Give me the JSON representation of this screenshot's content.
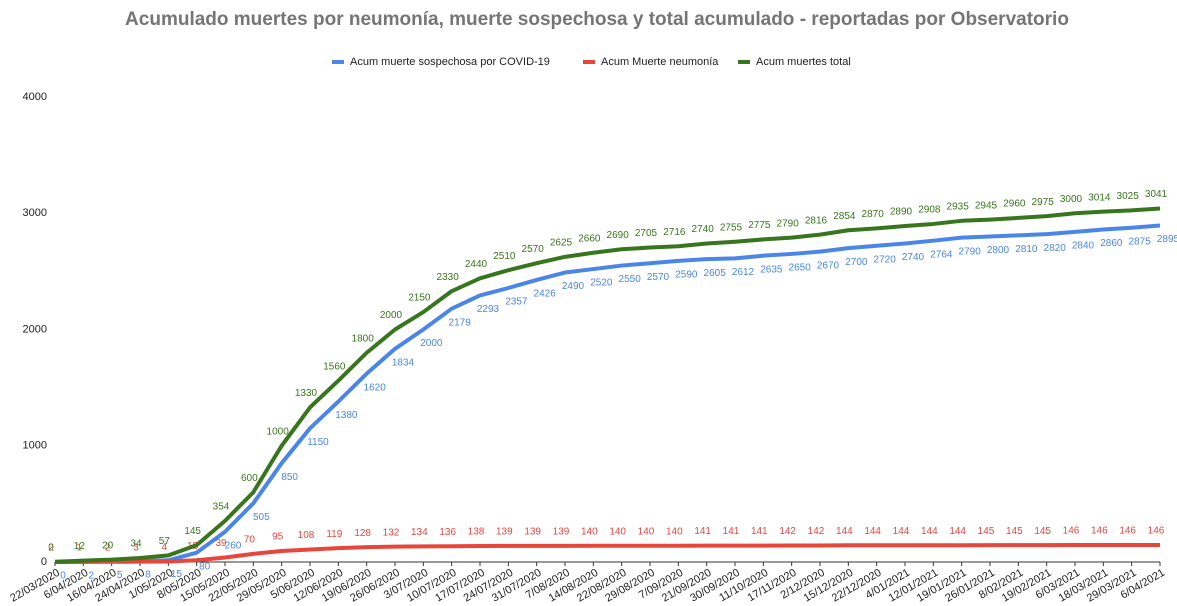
{
  "chart_data": {
    "type": "line",
    "title": "Acumulado muertes por neumonía, muerte sospechosa y total acumulado - reportadas por Observatorio",
    "categories": [
      "22/03/2020",
      "6/04/2020",
      "16/04/2020",
      "24/04/2020",
      "1/05/2020",
      "8/05/2020",
      "15/05/2020",
      "22/05/2020",
      "29/05/2020",
      "5/06/2020",
      "12/06/2020",
      "19/06/2020",
      "26/06/2020",
      "3/07/2020",
      "10/07/2020",
      "17/07/2020",
      "24/07/2020",
      "31/07/2020",
      "7/08/2020",
      "14/08/2020",
      "22/08/2020",
      "29/08/2020",
      "7/09/2020",
      "21/09/2020",
      "30/09/2020",
      "11/10/2020",
      "17/11/2020",
      "2/12/2020",
      "15/12/2020",
      "22/12/2020",
      "4/01/2021",
      "12/01/2021",
      "19/01/2021",
      "26/01/2021",
      "8/02/2021",
      "19/02/2021",
      "6/03/2021",
      "18/03/2021",
      "29/03/2021",
      "6/04/2021"
    ],
    "series": [
      {
        "name": "Acum muerte sospechosa por COVID-19",
        "color": "#4a86e8",
        "values": [
          0,
          2,
          5,
          8,
          15,
          80,
          260,
          505,
          850,
          1150,
          1380,
          1620,
          1834,
          2000,
          2179,
          2293,
          2357,
          2426,
          2490,
          2520,
          2550,
          2570,
          2590,
          2605,
          2612,
          2635,
          2650,
          2670,
          2700,
          2720,
          2740,
          2764,
          2790,
          2800,
          2810,
          2820,
          2840,
          2860,
          2875,
          2895
        ]
      },
      {
        "name": "Acum Muerte neumonía",
        "color": "#e8453c",
        "values": [
          0,
          1,
          2,
          3,
          4,
          15,
          39,
          70,
          95,
          108,
          119,
          128,
          132,
          134,
          136,
          138,
          139,
          139,
          139,
          140,
          140,
          140,
          140,
          141,
          141,
          141,
          142,
          142,
          144,
          144,
          144,
          144,
          144,
          145,
          145,
          145,
          146,
          146,
          146,
          146
        ]
      },
      {
        "name": "Acum muertes total",
        "color": "#38761d",
        "values": [
          2,
          12,
          20,
          34,
          57,
          145,
          354,
          600,
          1000,
          1330,
          1560,
          1800,
          2000,
          2150,
          2330,
          2440,
          2510,
          2570,
          2625,
          2660,
          2690,
          2705,
          2716,
          2740,
          2755,
          2775,
          2790,
          2816,
          2854,
          2870,
          2890,
          2908,
          2935,
          2945,
          2960,
          2975,
          3000,
          3014,
          3025,
          3041
        ]
      }
    ],
    "ylim": [
      0,
      4000
    ],
    "yticks": [
      0,
      1000,
      2000,
      3000,
      4000
    ],
    "grid": false
  }
}
